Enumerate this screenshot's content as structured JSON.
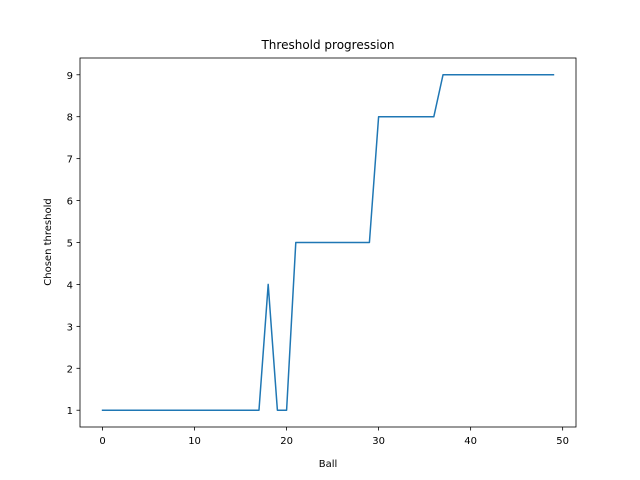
{
  "chart_data": {
    "type": "line",
    "title": "Threshold progression",
    "xlabel": "Ball",
    "ylabel": "Chosen threshold",
    "xlim": [
      -2.45,
      51.45
    ],
    "ylim": [
      0.6,
      9.4
    ],
    "xticks": [
      0,
      10,
      20,
      30,
      40,
      50
    ],
    "yticks": [
      1,
      2,
      3,
      4,
      5,
      6,
      7,
      8,
      9
    ],
    "grid": false,
    "series": [
      {
        "color": "#1f77b4",
        "x": [
          0,
          1,
          2,
          3,
          4,
          5,
          6,
          7,
          8,
          9,
          10,
          11,
          12,
          13,
          14,
          15,
          16,
          17,
          18,
          19,
          20,
          21,
          22,
          23,
          24,
          25,
          26,
          27,
          28,
          29,
          30,
          31,
          32,
          33,
          34,
          35,
          36,
          37,
          38,
          39,
          40,
          41,
          42,
          43,
          44,
          45,
          46,
          47,
          48,
          49
        ],
        "values": [
          1,
          1,
          1,
          1,
          1,
          1,
          1,
          1,
          1,
          1,
          1,
          1,
          1,
          1,
          1,
          1,
          1,
          1,
          4,
          1,
          1,
          5,
          5,
          5,
          5,
          5,
          5,
          5,
          5,
          5,
          8,
          8,
          8,
          8,
          8,
          8,
          8,
          9,
          9,
          9,
          9,
          9,
          9,
          9,
          9,
          9,
          9,
          9,
          9,
          9
        ]
      }
    ]
  }
}
